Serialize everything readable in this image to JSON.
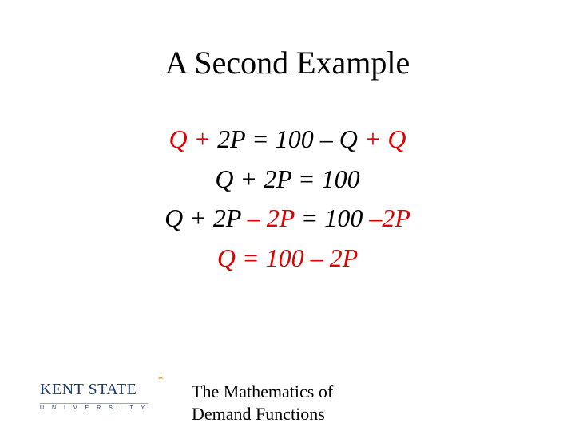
{
  "title": "A Second Example",
  "colors": {
    "highlight": "#dd0000",
    "text": "#000000",
    "logo_primary": "#1b3a6a",
    "logo_accent": "#c9a24a",
    "background": "#ffffff"
  },
  "typography": {
    "title_fontsize": 40,
    "equation_fontsize": 32,
    "footer_fontsize": 22,
    "font_family": "Times New Roman"
  },
  "equations": [
    {
      "segments": [
        {
          "text": "Q",
          "color": "red"
        },
        {
          "text": " + ",
          "color": "red"
        },
        {
          "text": "2P = 100 – Q",
          "color": "black"
        },
        {
          "text": " + Q",
          "color": "red"
        }
      ]
    },
    {
      "segments": [
        {
          "text": "Q + 2P = 100",
          "color": "black"
        }
      ]
    },
    {
      "segments": [
        {
          "text": "Q + 2P",
          "color": "black"
        },
        {
          "text": " – 2P",
          "color": "red"
        },
        {
          "text": " = 100 ",
          "color": "black"
        },
        {
          "text": "–2P",
          "color": "red"
        }
      ]
    },
    {
      "segments": [
        {
          "text": "Q = 100 – 2P",
          "color": "red"
        }
      ]
    }
  ],
  "footer": {
    "line1": "The Mathematics of",
    "line2": "Demand Functions"
  },
  "logo": {
    "main": "KENT STATE",
    "sub": "U N I V E R S I T Y"
  }
}
